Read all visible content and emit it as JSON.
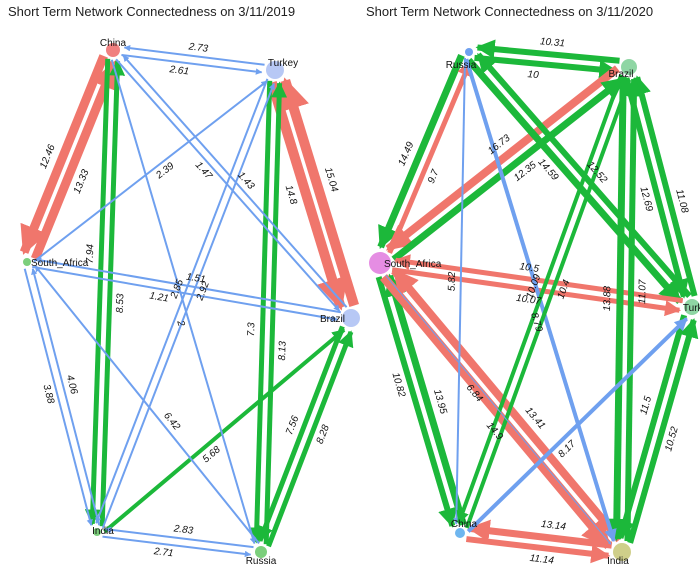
{
  "panels": [
    {
      "title": "Short Term Network Connectedness on 3/11/2019",
      "nodes": [
        {
          "id": "China",
          "label": "China",
          "color": "#f08080",
          "r": 7
        },
        {
          "id": "Turkey",
          "label": "Turkey",
          "color": "#b7c8f5",
          "r": 9
        },
        {
          "id": "South_Africa",
          "label": "South_Africa",
          "color": "#7ccf7c",
          "r": 4
        },
        {
          "id": "Brazil",
          "label": "Brazil",
          "color": "#b7c8f5",
          "r": 9
        },
        {
          "id": "India",
          "label": "India",
          "color": "#7ccf7c",
          "r": 4
        },
        {
          "id": "Russia",
          "label": "Russia",
          "color": "#7ccf7c",
          "r": 6
        }
      ],
      "edges": [
        {
          "from": "China",
          "to": "Turkey",
          "label": "2.61",
          "color": "#6fa0ef",
          "w": 2
        },
        {
          "from": "Turkey",
          "to": "China",
          "label": "2.73",
          "color": "#6fa0ef",
          "w": 2
        },
        {
          "from": "China",
          "to": "South_Africa",
          "label": "12.46",
          "color": "#f0766c",
          "w": 9
        },
        {
          "from": "South_Africa",
          "to": "China",
          "label": "13.33",
          "color": "#f0766c",
          "w": 9
        },
        {
          "from": "Turkey",
          "to": "Brazil",
          "label": "14.8",
          "color": "#f0766c",
          "w": 10
        },
        {
          "from": "Brazil",
          "to": "Turkey",
          "label": "15.04",
          "color": "#f0766c",
          "w": 10
        },
        {
          "from": "China",
          "to": "India",
          "label": "7.94",
          "color": "#1cb83a",
          "w": 5
        },
        {
          "from": "India",
          "to": "China",
          "label": "8.53",
          "color": "#1cb83a",
          "w": 5
        },
        {
          "from": "Turkey",
          "to": "Russia",
          "label": "7.3",
          "color": "#1cb83a",
          "w": 5
        },
        {
          "from": "Russia",
          "to": "Turkey",
          "label": "8.13",
          "color": "#1cb83a",
          "w": 5
        },
        {
          "from": "Brazil",
          "to": "Russia",
          "label": "7.56",
          "color": "#1cb83a",
          "w": 5
        },
        {
          "from": "Russia",
          "to": "Brazil",
          "label": "8.28",
          "color": "#1cb83a",
          "w": 5
        },
        {
          "from": "India",
          "to": "Brazil",
          "label": "5.68",
          "color": "#1cb83a",
          "w": 4
        },
        {
          "from": "South_Africa",
          "to": "India",
          "label": "3.88",
          "color": "#6fa0ef",
          "w": 2
        },
        {
          "from": "India",
          "to": "South_Africa",
          "label": "4.06",
          "color": "#6fa0ef",
          "w": 2
        },
        {
          "from": "India",
          "to": "Russia",
          "label": "2.71",
          "color": "#6fa0ef",
          "w": 2
        },
        {
          "from": "Russia",
          "to": "India",
          "label": "2.83",
          "color": "#6fa0ef",
          "w": 2
        },
        {
          "from": "South_Africa",
          "to": "Turkey",
          "label": "2.39",
          "color": "#6fa0ef",
          "w": 2
        },
        {
          "from": "China",
          "to": "Brazil",
          "label": "1.47",
          "color": "#6fa0ef",
          "w": 2
        },
        {
          "from": "Brazil",
          "to": "China",
          "label": "1.43",
          "color": "#6fa0ef",
          "w": 2
        },
        {
          "from": "China",
          "to": "Russia",
          "label": "2",
          "color": "#6fa0ef",
          "w": 2
        },
        {
          "from": "Russia",
          "to": "South_Africa",
          "label": "6.42",
          "color": "#6fa0ef",
          "w": 2
        },
        {
          "from": "Turkey",
          "to": "India",
          "label": "2.85",
          "color": "#6fa0ef",
          "w": 2
        },
        {
          "from": "India",
          "to": "Turkey",
          "label": "2.92",
          "color": "#6fa0ef",
          "w": 2
        },
        {
          "from": "South_Africa",
          "to": "Brazil",
          "label": "1.21",
          "color": "#6fa0ef",
          "w": 2
        },
        {
          "from": "Brazil",
          "to": "South_Africa",
          "label": "1.51",
          "color": "#6fa0ef",
          "w": 2
        }
      ]
    },
    {
      "title": "Short Term Network Connectedness on 3/11/2020",
      "nodes": [
        {
          "id": "Russia",
          "label": "Russia",
          "color": "#6fa0ef",
          "r": 4
        },
        {
          "id": "Brazil",
          "label": "Brazil",
          "color": "#8fd6a4",
          "r": 8
        },
        {
          "id": "South_Africa",
          "label": "South_Africa",
          "color": "#e58de3",
          "r": 11
        },
        {
          "id": "Turkey",
          "label": "Turkey",
          "color": "#8fd6a4",
          "r": 8
        },
        {
          "id": "China",
          "label": "China",
          "color": "#6fb6ef",
          "r": 5
        },
        {
          "id": "India",
          "label": "India",
          "color": "#cfcf8a",
          "r": 9
        }
      ],
      "edges": [
        {
          "from": "Russia",
          "to": "Brazil",
          "label": "10",
          "color": "#1cb83a",
          "w": 6
        },
        {
          "from": "Brazil",
          "to": "Russia",
          "label": "10.31",
          "color": "#1cb83a",
          "w": 6
        },
        {
          "from": "Russia",
          "to": "South_Africa",
          "label": "14.49",
          "color": "#1cb83a",
          "w": 7
        },
        {
          "from": "South_Africa",
          "to": "Russia",
          "label": "9.7",
          "color": "#f0766c",
          "w": 5
        },
        {
          "from": "Brazil",
          "to": "South_Africa",
          "label": "16.73",
          "color": "#f0766c",
          "w": 8
        },
        {
          "from": "South_Africa",
          "to": "Brazil",
          "label": "12.35",
          "color": "#1cb83a",
          "w": 7
        },
        {
          "from": "Russia",
          "to": "Turkey",
          "label": "14.59",
          "color": "#1cb83a",
          "w": 7
        },
        {
          "from": "Turkey",
          "to": "Russia",
          "label": "12.52",
          "color": "#1cb83a",
          "w": 6
        },
        {
          "from": "Brazil",
          "to": "Turkey",
          "label": "12.69",
          "color": "#1cb83a",
          "w": 6
        },
        {
          "from": "Turkey",
          "to": "Brazil",
          "label": "11.08",
          "color": "#1cb83a",
          "w": 6
        },
        {
          "from": "South_Africa",
          "to": "Turkey",
          "label": "10.07",
          "color": "#f0766c",
          "w": 5
        },
        {
          "from": "Turkey",
          "to": "South_Africa",
          "label": "10.5",
          "color": "#f0766c",
          "w": 5
        },
        {
          "from": "South_Africa",
          "to": "China",
          "label": "10.82",
          "color": "#1cb83a",
          "w": 6
        },
        {
          "from": "China",
          "to": "South_Africa",
          "label": "13.95",
          "color": "#1cb83a",
          "w": 7
        },
        {
          "from": "South_Africa",
          "to": "India",
          "label": "14.9",
          "color": "#f0766c",
          "w": 9
        },
        {
          "from": "India",
          "to": "South_Africa",
          "label": "13.41",
          "color": "#f0766c",
          "w": 8
        },
        {
          "from": "Brazil",
          "to": "India",
          "label": "13.88",
          "color": "#1cb83a",
          "w": 7
        },
        {
          "from": "India",
          "to": "Brazil",
          "label": "11.07",
          "color": "#1cb83a",
          "w": 6
        },
        {
          "from": "Turkey",
          "to": "India",
          "label": "11.5",
          "color": "#1cb83a",
          "w": 6
        },
        {
          "from": "India",
          "to": "Turkey",
          "label": "10.52",
          "color": "#1cb83a",
          "w": 6
        },
        {
          "from": "China",
          "to": "India",
          "label": "11.14",
          "color": "#f0766c",
          "w": 6
        },
        {
          "from": "India",
          "to": "China",
          "label": "13.14",
          "color": "#f0766c",
          "w": 7
        },
        {
          "from": "Russia",
          "to": "China",
          "label": "5.82",
          "color": "#6fa0ef",
          "w": 2
        },
        {
          "from": "Russia",
          "to": "India",
          "label": "8.79",
          "color": "#6fa0ef",
          "w": 4
        },
        {
          "from": "China",
          "to": "Turkey",
          "label": "8.17",
          "color": "#6fa0ef",
          "w": 4
        },
        {
          "from": "Brazil",
          "to": "China",
          "label": "10.09",
          "color": "#1cb83a",
          "w": 4
        },
        {
          "from": "China",
          "to": "Brazil",
          "label": "10.4",
          "color": "#1cb83a",
          "w": 4
        },
        {
          "from": "South_Africa",
          "to": "India",
          "label": "6.84",
          "color": "#6fa0ef",
          "w": 1
        }
      ]
    }
  ]
}
